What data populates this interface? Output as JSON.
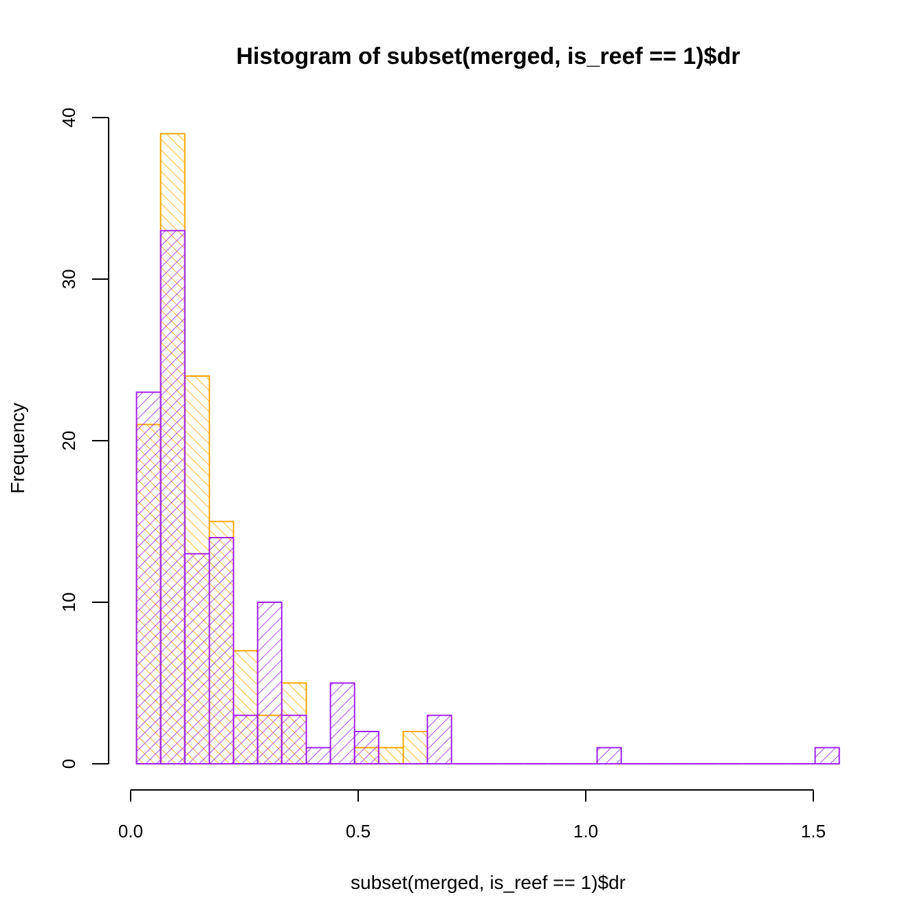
{
  "chart_data": {
    "type": "bar",
    "title": "Histogram of subset(merged, is_reef == 1)$dr",
    "xlabel": "subset(merged, is_reef == 1)$dr",
    "ylabel": "Frequency",
    "xlim": [
      0.0,
      1.55
    ],
    "ylim": [
      0,
      40
    ],
    "x_ticks": [
      0.0,
      0.5,
      1.0,
      1.5
    ],
    "x_tick_labels": [
      "0.0",
      "0.5",
      "1.0",
      "1.5"
    ],
    "y_ticks": [
      0,
      10,
      20,
      30,
      40
    ],
    "y_tick_labels": [
      "0",
      "10",
      "20",
      "30",
      "40"
    ],
    "grid": false,
    "legend": "none",
    "series": [
      {
        "color": "#FFA500",
        "hatch": "backslash",
        "bins": [
          {
            "x0": 0.013,
            "x1": 0.066,
            "count": 21
          },
          {
            "x0": 0.066,
            "x1": 0.119,
            "count": 39
          },
          {
            "x0": 0.119,
            "x1": 0.173,
            "count": 24
          },
          {
            "x0": 0.173,
            "x1": 0.226,
            "count": 15
          },
          {
            "x0": 0.226,
            "x1": 0.279,
            "count": 7
          },
          {
            "x0": 0.279,
            "x1": 0.332,
            "count": 3
          },
          {
            "x0": 0.332,
            "x1": 0.386,
            "count": 5
          },
          {
            "x0": 0.386,
            "x1": 0.439,
            "count": 0
          },
          {
            "x0": 0.439,
            "x1": 0.492,
            "count": 0
          },
          {
            "x0": 0.492,
            "x1": 0.545,
            "count": 1
          },
          {
            "x0": 0.545,
            "x1": 0.599,
            "count": 1
          },
          {
            "x0": 0.599,
            "x1": 0.652,
            "count": 2
          }
        ]
      },
      {
        "color": "#A020F0",
        "hatch": "slash",
        "bins": [
          {
            "x0": 0.013,
            "x1": 0.066,
            "count": 23
          },
          {
            "x0": 0.066,
            "x1": 0.119,
            "count": 33
          },
          {
            "x0": 0.119,
            "x1": 0.173,
            "count": 13
          },
          {
            "x0": 0.173,
            "x1": 0.226,
            "count": 14
          },
          {
            "x0": 0.226,
            "x1": 0.279,
            "count": 3
          },
          {
            "x0": 0.279,
            "x1": 0.332,
            "count": 10
          },
          {
            "x0": 0.332,
            "x1": 0.386,
            "count": 3
          },
          {
            "x0": 0.386,
            "x1": 0.439,
            "count": 1
          },
          {
            "x0": 0.439,
            "x1": 0.492,
            "count": 5
          },
          {
            "x0": 0.492,
            "x1": 0.545,
            "count": 2
          },
          {
            "x0": 0.545,
            "x1": 0.599,
            "count": 0
          },
          {
            "x0": 0.599,
            "x1": 0.652,
            "count": 0
          },
          {
            "x0": 0.652,
            "x1": 0.705,
            "count": 3
          },
          {
            "x0": 0.705,
            "x1": 0.759,
            "count": 0
          },
          {
            "x0": 0.759,
            "x1": 0.812,
            "count": 0
          },
          {
            "x0": 0.812,
            "x1": 0.865,
            "count": 0
          },
          {
            "x0": 0.865,
            "x1": 0.918,
            "count": 0
          },
          {
            "x0": 0.918,
            "x1": 0.972,
            "count": 0
          },
          {
            "x0": 0.972,
            "x1": 1.025,
            "count": 0
          },
          {
            "x0": 1.025,
            "x1": 1.078,
            "count": 1
          },
          {
            "x0": 1.078,
            "x1": 1.131,
            "count": 0
          },
          {
            "x0": 1.131,
            "x1": 1.185,
            "count": 0
          },
          {
            "x0": 1.185,
            "x1": 1.238,
            "count": 0
          },
          {
            "x0": 1.238,
            "x1": 1.291,
            "count": 0
          },
          {
            "x0": 1.291,
            "x1": 1.344,
            "count": 0
          },
          {
            "x0": 1.344,
            "x1": 1.398,
            "count": 0
          },
          {
            "x0": 1.398,
            "x1": 1.451,
            "count": 0
          },
          {
            "x0": 1.451,
            "x1": 1.504,
            "count": 0
          },
          {
            "x0": 1.504,
            "x1": 1.557,
            "count": 1
          }
        ]
      }
    ]
  }
}
